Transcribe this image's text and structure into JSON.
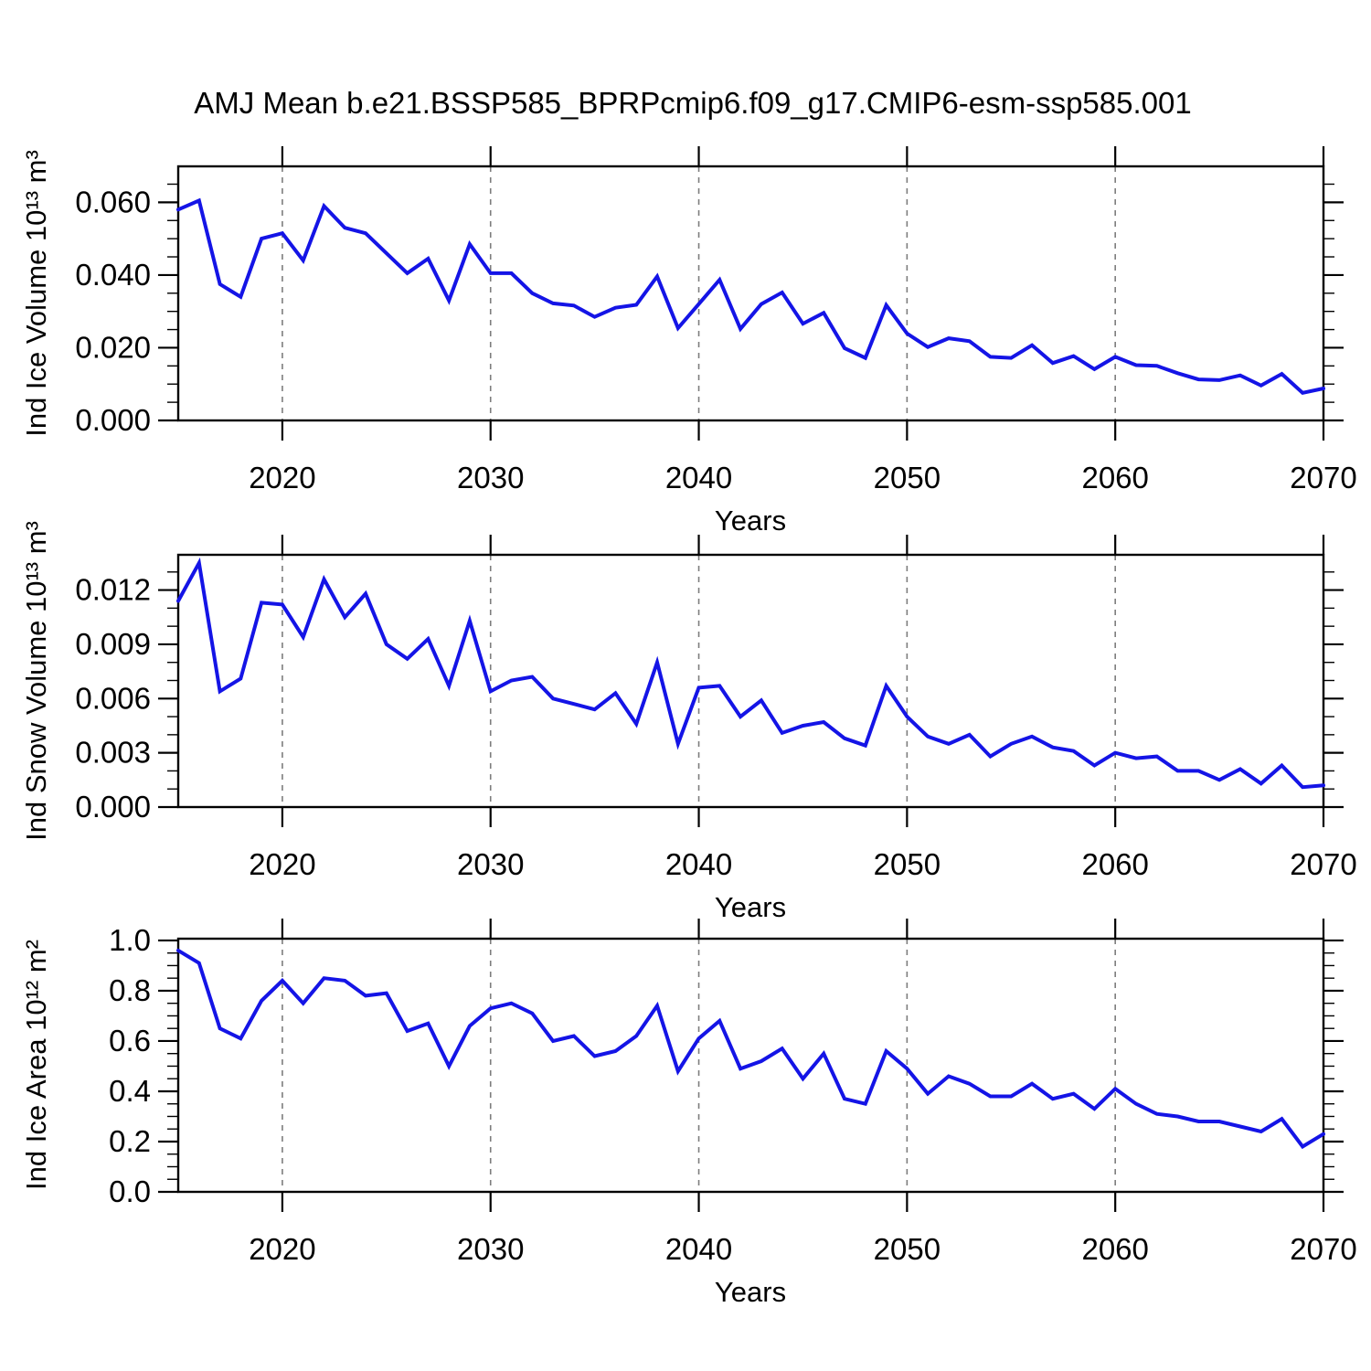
{
  "page_title": "AMJ Mean b.e21.BSSP585_BPRPcmip6.f09_g17.CMIP6-esm-ssp585.001",
  "colors": {
    "line": "#1414e6",
    "grid": "#7d7d7d",
    "frame": "#000000",
    "text": "#000000"
  },
  "chart_data": [
    {
      "type": "line",
      "title": "AMJ Mean b.e21.BSSP585_BPRPcmip6.f09_g17.CMIP6-esm-ssp585.001",
      "ylabel": "Ind Ice Volume 10¹³ m³",
      "xlabel": "Years",
      "legend_position": "none",
      "grid": "vertical-dashed",
      "xlim": [
        2015,
        2070
      ],
      "ylim": [
        0,
        0.0699
      ],
      "xticks": [
        2020,
        2030,
        2040,
        2050,
        2060,
        2070
      ],
      "xtick_labels": [
        "2020",
        "2030",
        "2040",
        "2050",
        "2060",
        "2070"
      ],
      "xminor_step": 2,
      "grid_years": [
        2020,
        2030,
        2040,
        2050,
        2060
      ],
      "ytick_values": [
        0.0,
        0.02,
        0.04,
        0.06
      ],
      "ytick_labels": [
        "0.000",
        "0.020",
        "0.040",
        "0.060"
      ],
      "yminor_step": 0.005,
      "x": [
        2015,
        2016,
        2017,
        2018,
        2019,
        2020,
        2021,
        2022,
        2023,
        2024,
        2025,
        2026,
        2027,
        2028,
        2029,
        2030,
        2031,
        2032,
        2033,
        2034,
        2035,
        2036,
        2037,
        2038,
        2039,
        2040,
        2041,
        2042,
        2043,
        2044,
        2045,
        2046,
        2047,
        2048,
        2049,
        2050,
        2051,
        2052,
        2053,
        2054,
        2055,
        2056,
        2057,
        2058,
        2059,
        2060,
        2061,
        2062,
        2063,
        2064,
        2065,
        2066,
        2067,
        2068,
        2069,
        2070
      ],
      "values": [
        0.058,
        0.0605,
        0.0375,
        0.034,
        0.05,
        0.0515,
        0.044,
        0.059,
        0.053,
        0.0515,
        0.046,
        0.0405,
        0.0445,
        0.033,
        0.0485,
        0.0405,
        0.0405,
        0.035,
        0.0322,
        0.0316,
        0.0285,
        0.031,
        0.0318,
        0.0396,
        0.0254,
        0.032,
        0.0387,
        0.0252,
        0.032,
        0.0352,
        0.0266,
        0.0296,
        0.0199,
        0.0172,
        0.0317,
        0.0239,
        0.0202,
        0.0226,
        0.0218,
        0.0175,
        0.0172,
        0.0207,
        0.0158,
        0.0177,
        0.0141,
        0.0175,
        0.0152,
        0.015,
        0.013,
        0.0113,
        0.0111,
        0.0124,
        0.0096,
        0.0128,
        0.0076,
        0.0088
      ]
    },
    {
      "type": "line",
      "title": "",
      "ylabel": "Ind Snow Volume 10¹³ m³",
      "xlabel": "Years",
      "legend_position": "none",
      "grid": "vertical-dashed",
      "xlim": [
        2015,
        2070
      ],
      "ylim": [
        0,
        0.01395
      ],
      "xticks": [
        2020,
        2030,
        2040,
        2050,
        2060,
        2070
      ],
      "xtick_labels": [
        "2020",
        "2030",
        "2040",
        "2050",
        "2060",
        "2070"
      ],
      "xminor_step": 2,
      "grid_years": [
        2020,
        2030,
        2040,
        2050,
        2060
      ],
      "ytick_values": [
        0.0,
        0.003,
        0.006,
        0.009,
        0.012
      ],
      "ytick_labels": [
        "0.000",
        "0.003",
        "0.006",
        "0.009",
        "0.012"
      ],
      "yminor_step": 0.001,
      "x": [
        2015,
        2016,
        2017,
        2018,
        2019,
        2020,
        2021,
        2022,
        2023,
        2024,
        2025,
        2026,
        2027,
        2028,
        2029,
        2030,
        2031,
        2032,
        2033,
        2034,
        2035,
        2036,
        2037,
        2038,
        2039,
        2040,
        2041,
        2042,
        2043,
        2044,
        2045,
        2046,
        2047,
        2048,
        2049,
        2050,
        2051,
        2052,
        2053,
        2054,
        2055,
        2056,
        2057,
        2058,
        2059,
        2060,
        2061,
        2062,
        2063,
        2064,
        2065,
        2066,
        2067,
        2068,
        2069,
        2070
      ],
      "values": [
        0.0114,
        0.0135,
        0.0064,
        0.0071,
        0.0113,
        0.0112,
        0.0094,
        0.0126,
        0.0105,
        0.0118,
        0.009,
        0.0082,
        0.0093,
        0.0067,
        0.0103,
        0.0064,
        0.007,
        0.0072,
        0.006,
        0.0057,
        0.0054,
        0.0063,
        0.0046,
        0.008,
        0.0035,
        0.0066,
        0.0067,
        0.005,
        0.0059,
        0.0041,
        0.0045,
        0.0047,
        0.0038,
        0.0034,
        0.0067,
        0.005,
        0.0039,
        0.0035,
        0.004,
        0.0028,
        0.0035,
        0.0039,
        0.0033,
        0.0031,
        0.0023,
        0.003,
        0.0027,
        0.0028,
        0.002,
        0.002,
        0.0015,
        0.0021,
        0.0013,
        0.0023,
        0.0011,
        0.0012
      ]
    },
    {
      "type": "line",
      "title": "",
      "ylabel": "Ind Ice Area 10¹² m²",
      "xlabel": "Years",
      "legend_position": "none",
      "grid": "vertical-dashed",
      "xlim": [
        2015,
        2070
      ],
      "ylim": [
        0,
        1.007
      ],
      "xticks": [
        2020,
        2030,
        2040,
        2050,
        2060,
        2070
      ],
      "xtick_labels": [
        "2020",
        "2030",
        "2040",
        "2050",
        "2060",
        "2070"
      ],
      "xminor_step": 2,
      "grid_years": [
        2020,
        2030,
        2040,
        2050,
        2060
      ],
      "ytick_values": [
        0.0,
        0.2,
        0.4,
        0.6,
        0.8,
        1.0
      ],
      "ytick_labels": [
        "0.0",
        "0.2",
        "0.4",
        "0.6",
        "0.8",
        "1.0"
      ],
      "yminor_step": 0.05,
      "x": [
        2015,
        2016,
        2017,
        2018,
        2019,
        2020,
        2021,
        2022,
        2023,
        2024,
        2025,
        2026,
        2027,
        2028,
        2029,
        2030,
        2031,
        2032,
        2033,
        2034,
        2035,
        2036,
        2037,
        2038,
        2039,
        2040,
        2041,
        2042,
        2043,
        2044,
        2045,
        2046,
        2047,
        2048,
        2049,
        2050,
        2051,
        2052,
        2053,
        2054,
        2055,
        2056,
        2057,
        2058,
        2059,
        2060,
        2061,
        2062,
        2063,
        2064,
        2065,
        2066,
        2067,
        2068,
        2069,
        2070
      ],
      "values": [
        0.96,
        0.91,
        0.65,
        0.61,
        0.76,
        0.84,
        0.75,
        0.85,
        0.84,
        0.78,
        0.79,
        0.64,
        0.67,
        0.5,
        0.66,
        0.73,
        0.75,
        0.71,
        0.6,
        0.62,
        0.54,
        0.56,
        0.62,
        0.74,
        0.48,
        0.61,
        0.68,
        0.49,
        0.52,
        0.57,
        0.45,
        0.55,
        0.37,
        0.35,
        0.56,
        0.49,
        0.39,
        0.46,
        0.43,
        0.38,
        0.38,
        0.43,
        0.37,
        0.39,
        0.33,
        0.41,
        0.35,
        0.31,
        0.3,
        0.28,
        0.28,
        0.26,
        0.24,
        0.29,
        0.18,
        0.23
      ]
    }
  ]
}
